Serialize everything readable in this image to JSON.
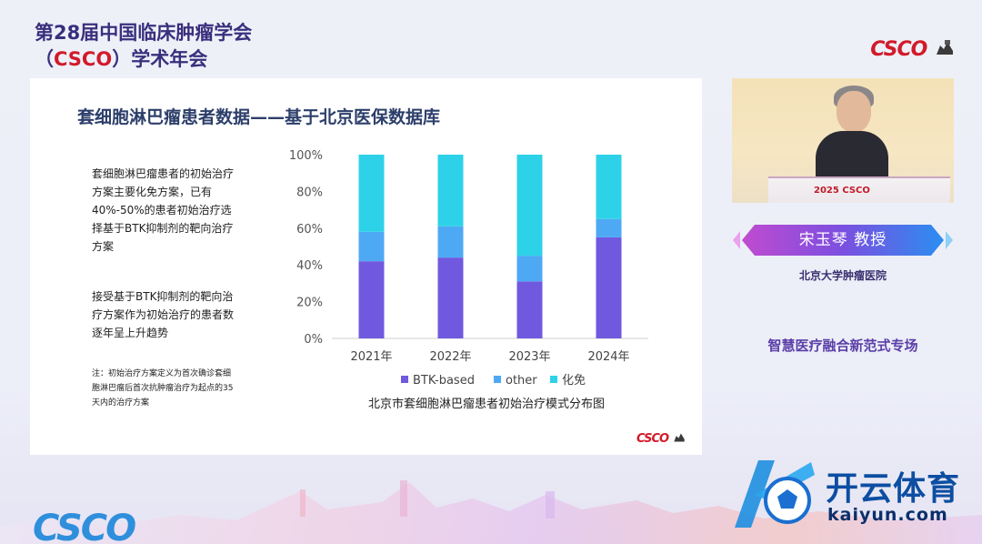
{
  "header": {
    "title_line1": "第28届中国临床肿瘤学会",
    "title_line2_prefix": "（",
    "title_line2_csco": "CSCO",
    "title_line2_suffix": "）学术年会",
    "logo": "CSCO"
  },
  "slide": {
    "title": "套细胞淋巴瘤患者数据——基于北京医保数据库",
    "paragraph1": "套细胞淋巴瘤患者的初始治疗方案主要化免方案，已有40%-50%的患者初始治疗选择基于BTK抑制剂的靶向治疗方案",
    "paragraph2": "接受基于BTK抑制剂的靶向治疗方案作为初始治疗的患者数逐年呈上升趋势",
    "note": "注：初始治疗方案定义为首次确诊套细胞淋巴瘤后首次抗肿瘤治疗为起点的35天内的治疗方案",
    "logo": "CSCO"
  },
  "chart_data": {
    "type": "bar",
    "stacked": true,
    "categories": [
      "2021年",
      "2022年",
      "2023年",
      "2024年"
    ],
    "series": [
      {
        "name": "BTK-based",
        "values": [
          42,
          44,
          31,
          55
        ],
        "color": "#7159df"
      },
      {
        "name": "other",
        "values": [
          16,
          17,
          14,
          10
        ],
        "color": "#4ea9f4"
      },
      {
        "name": "化免",
        "values": [
          42,
          39,
          55,
          35
        ],
        "color": "#2ed2e8"
      }
    ],
    "y_ticks": [
      "0%",
      "20%",
      "40%",
      "60%",
      "80%",
      "100%"
    ],
    "ylim": [
      0,
      100
    ],
    "grid": false,
    "legend_position": "bottom",
    "caption": "北京市套细胞淋巴瘤患者初始治疗模式分布图"
  },
  "speaker_panel": {
    "podium_text": "2025 CSCO",
    "name": "宋玉琴  教授",
    "affiliation": "北京大学肿瘤医院",
    "session": "智慧医疗融合新范式专场"
  },
  "footer": {
    "logo": "CSCO"
  },
  "watermark": {
    "name": "开云体育",
    "url": "kaiyun.com"
  },
  "colors": {
    "brand_red": "#d21a2a",
    "title_navy": "#3a2f7d",
    "session_purple": "#5b3fa8",
    "watermark_blue": "#0c4ea2"
  }
}
